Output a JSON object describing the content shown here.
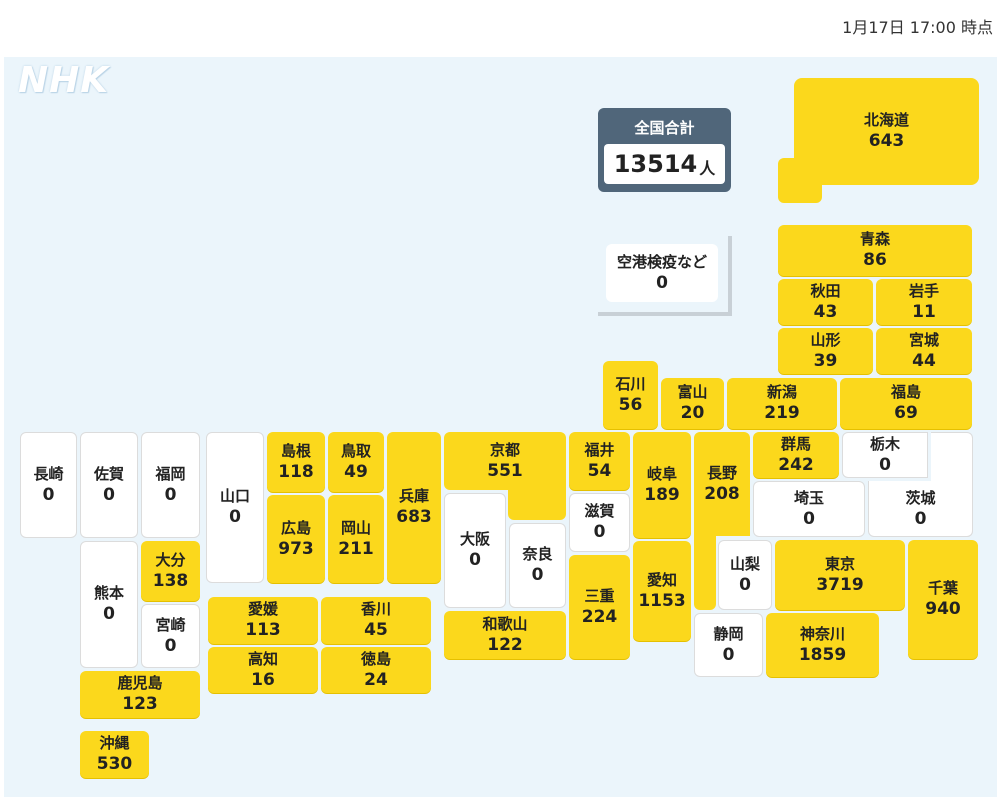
{
  "timestamp": "1月17日 17:00 時点",
  "logo": "NHK",
  "total": {
    "label": "全国合計",
    "value": "13514",
    "unit": "人"
  },
  "airport": {
    "name": "空港検疫など",
    "value": "0"
  },
  "colors": {
    "highlight": "#fbd81c",
    "zero": "#ffffff",
    "total_bg": "#50667a",
    "map_bg": "#ebf5fb"
  },
  "prefectures": {
    "hokkaido": {
      "name": "北海道",
      "value": "643"
    },
    "aomori": {
      "name": "青森",
      "value": "86"
    },
    "akita": {
      "name": "秋田",
      "value": "43"
    },
    "iwate": {
      "name": "岩手",
      "value": "11"
    },
    "yamagata": {
      "name": "山形",
      "value": "39"
    },
    "miyagi": {
      "name": "宮城",
      "value": "44"
    },
    "ishikawa": {
      "name": "石川",
      "value": "56"
    },
    "toyama": {
      "name": "富山",
      "value": "20"
    },
    "niigata": {
      "name": "新潟",
      "value": "219"
    },
    "fukushima": {
      "name": "福島",
      "value": "69"
    },
    "nagasaki": {
      "name": "長崎",
      "value": "0"
    },
    "saga": {
      "name": "佐賀",
      "value": "0"
    },
    "fukuoka": {
      "name": "福岡",
      "value": "0"
    },
    "yamaguchi": {
      "name": "山口",
      "value": "0"
    },
    "shimane": {
      "name": "島根",
      "value": "118"
    },
    "tottori": {
      "name": "鳥取",
      "value": "49"
    },
    "hyogo": {
      "name": "兵庫",
      "value": "683"
    },
    "kyoto": {
      "name": "京都",
      "value": "551"
    },
    "fukui": {
      "name": "福井",
      "value": "54"
    },
    "gifu": {
      "name": "岐阜",
      "value": "189"
    },
    "nagano": {
      "name": "長野",
      "value": "208"
    },
    "gunma": {
      "name": "群馬",
      "value": "242"
    },
    "tochigi": {
      "name": "栃木",
      "value": "0"
    },
    "saitama": {
      "name": "埼玉",
      "value": "0"
    },
    "ibaraki": {
      "name": "茨城",
      "value": "0"
    },
    "hiroshima": {
      "name": "広島",
      "value": "973"
    },
    "okayama": {
      "name": "岡山",
      "value": "211"
    },
    "osaka": {
      "name": "大阪",
      "value": "0"
    },
    "nara": {
      "name": "奈良",
      "value": "0"
    },
    "shiga": {
      "name": "滋賀",
      "value": "0"
    },
    "kumamoto": {
      "name": "熊本",
      "value": "0"
    },
    "oita": {
      "name": "大分",
      "value": "138"
    },
    "miyazaki": {
      "name": "宮崎",
      "value": "0"
    },
    "mie": {
      "name": "三重",
      "value": "224"
    },
    "aichi": {
      "name": "愛知",
      "value": "1153"
    },
    "yamanashi": {
      "name": "山梨",
      "value": "0"
    },
    "tokyo": {
      "name": "東京",
      "value": "3719"
    },
    "chiba": {
      "name": "千葉",
      "value": "940"
    },
    "ehime": {
      "name": "愛媛",
      "value": "113"
    },
    "kagawa": {
      "name": "香川",
      "value": "45"
    },
    "wakayama": {
      "name": "和歌山",
      "value": "122"
    },
    "shizuoka": {
      "name": "静岡",
      "value": "0"
    },
    "kanagawa": {
      "name": "神奈川",
      "value": "1859"
    },
    "kochi": {
      "name": "高知",
      "value": "16"
    },
    "tokushima": {
      "name": "徳島",
      "value": "24"
    },
    "kagoshima": {
      "name": "鹿児島",
      "value": "123"
    },
    "okinawa": {
      "name": "沖縄",
      "value": "530"
    }
  }
}
